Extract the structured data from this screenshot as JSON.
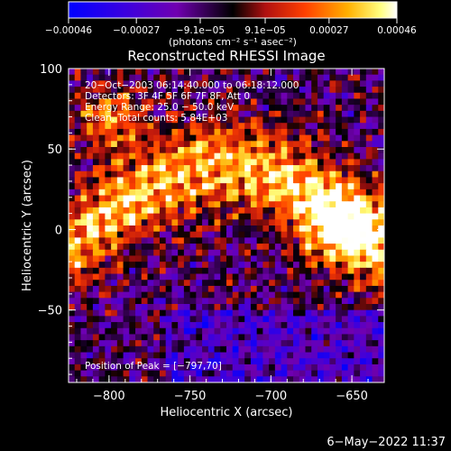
{
  "chart_data": {
    "type": "heatmap",
    "title": "Reconstructed RHESSI Image",
    "xlabel": "Heliocentric X (arcsec)",
    "ylabel": "Heliocentric Y (arcsec)",
    "xlim": [
      -825,
      -630
    ],
    "ylim": [
      -95,
      100
    ],
    "xticks": [
      -800,
      -750,
      -700,
      -650
    ],
    "yticks": [
      -50,
      0,
      50,
      100
    ],
    "xtick_labels": [
      "−800",
      "−750",
      "−700",
      "−650"
    ],
    "ytick_labels": [
      "−50",
      "0",
      "50",
      "100"
    ],
    "colorbar": {
      "range": [
        -0.00046,
        0.00046
      ],
      "ticks": [
        -0.00046,
        -0.00027,
        -9.1e-05,
        9.1e-05,
        0.00027,
        0.00046
      ],
      "tick_labels": [
        "−0.00046",
        "−0.00027",
        "−9.1e−05",
        "9.1e−05",
        "0.00027",
        "0.00046"
      ],
      "units_text": "(photons cm⁻² s⁻¹ asec⁻²)",
      "colors": [
        "#0000ff",
        "#6a00c0",
        "#000000",
        "#c02000",
        "#ff8000",
        "#ffff80",
        "#ffffff"
      ]
    },
    "annotations": [
      "20−Oct−2003 06:14:40.000 to 06:18:12.000",
      "Detectors: 3F 4F 5F 6F 7F 8F, Att 0",
      "Energy Range: 25.0 − 50.0 keV",
      "Clean.  Total counts: 5.84E+03"
    ],
    "peak_label": "Position of Peak = [−797,70]",
    "grid": false
  },
  "footer": {
    "timestamp": "6−May−2022 11:37"
  }
}
